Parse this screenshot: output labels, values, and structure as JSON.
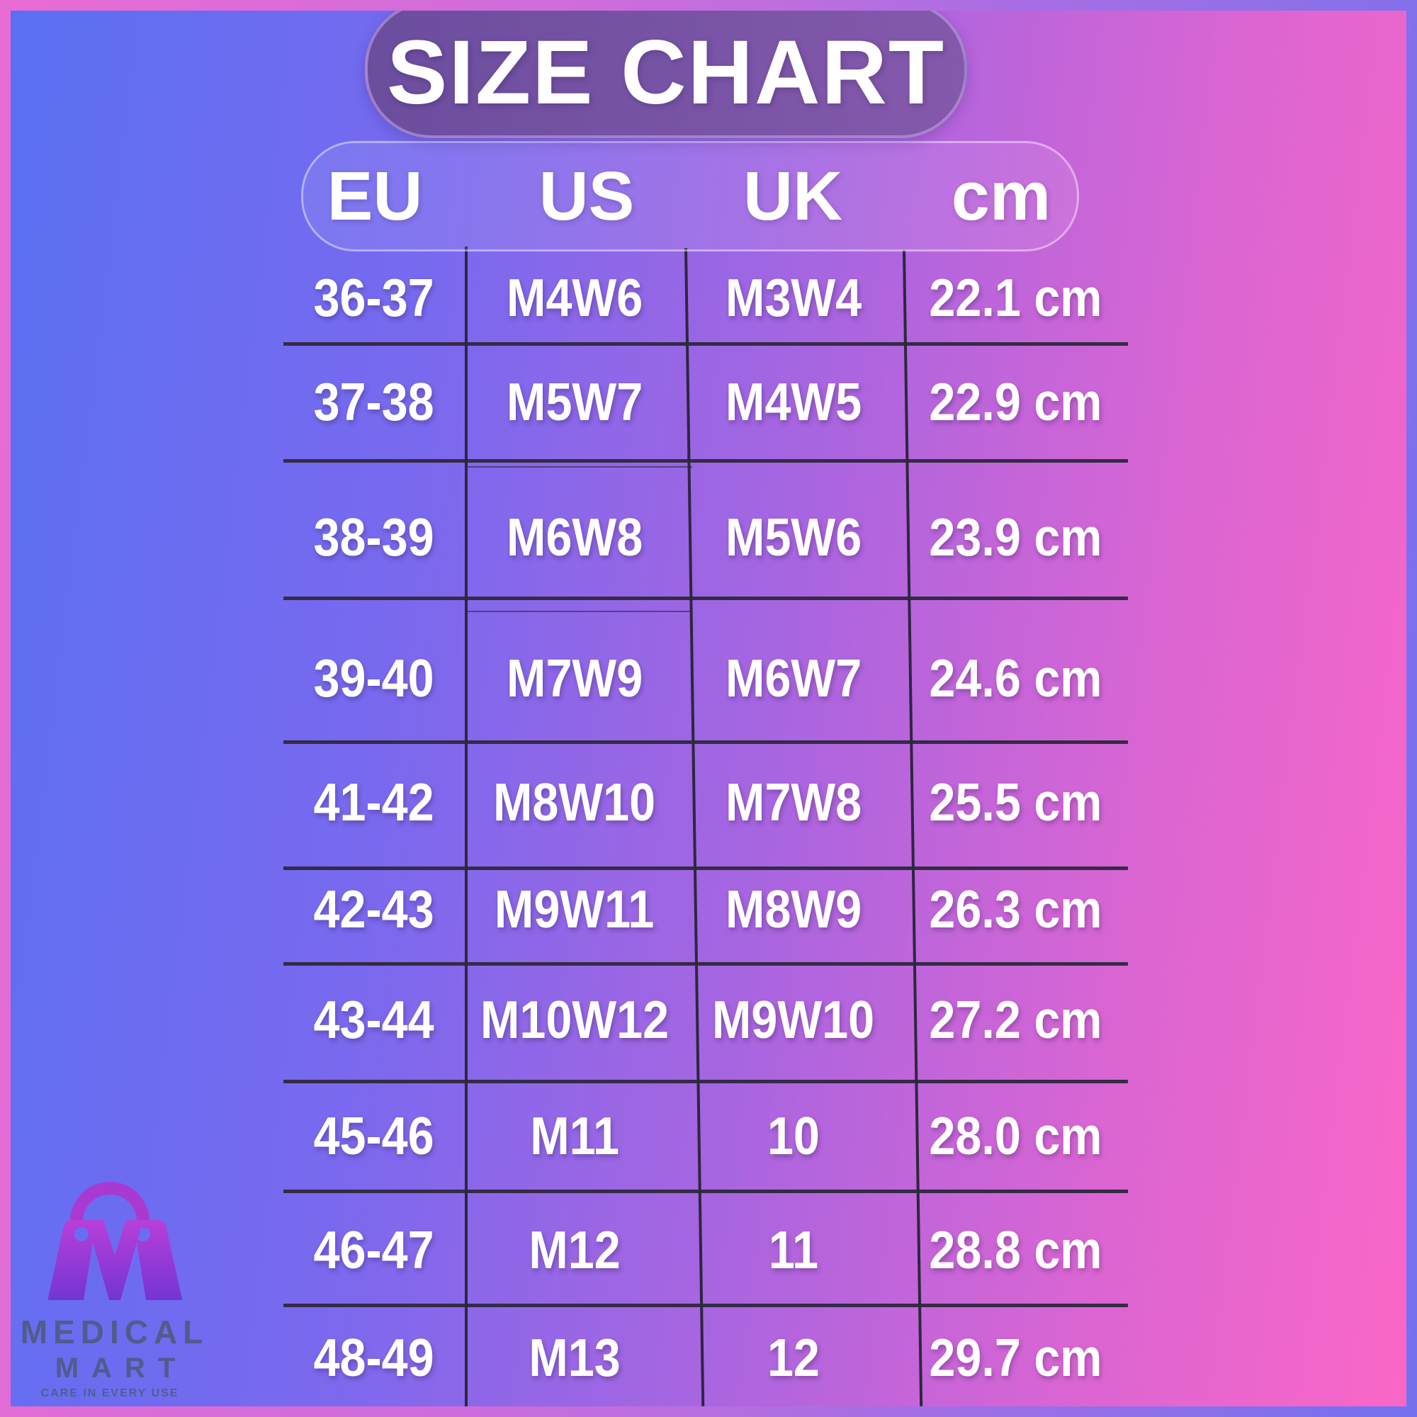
{
  "title": "SIZE CHART",
  "chart_data": {
    "type": "table",
    "title": "SIZE CHART",
    "columns": [
      "EU",
      "US",
      "UK",
      "cm"
    ],
    "rows": [
      [
        "36-37",
        "M4W6",
        "M3W4",
        "22.1 cm"
      ],
      [
        "37-38",
        "M5W7",
        "M4W5",
        "22.9 cm"
      ],
      [
        "38-39",
        "M6W8",
        "M5W6",
        "23.9 cm"
      ],
      [
        "39-40",
        "M7W9",
        "M6W7",
        "24.6 cm"
      ],
      [
        "41-42",
        "M8W10",
        "M7W8",
        "25.5 cm"
      ],
      [
        "42-43",
        "M9W11",
        "M8W9",
        "26.3 cm"
      ],
      [
        "43-44",
        "M10W12",
        "M9W10",
        "27.2 cm"
      ],
      [
        "45-46",
        "M11",
        "10",
        "28.0 cm"
      ],
      [
        "46-47",
        "M12",
        "11",
        "28.8 cm"
      ],
      [
        "48-49",
        "M13",
        "12",
        "29.7 cm"
      ]
    ],
    "layout_hints": {
      "grid": "dark row and column divider lines",
      "header_style": "rounded translucent pill",
      "units_column_suffix": "cm"
    }
  },
  "logo": {
    "line1": "MEDICAL",
    "line2": "MART",
    "tagline": "CARE IN EVERY USE",
    "registered_mark": "®"
  },
  "colors": {
    "background_left": "#5a70f3",
    "background_right": "#fa67c7",
    "frame_left": "#e96cd4",
    "frame_right": "#7471ee",
    "title_pill": "#6b4d9e",
    "divider_line": "#342b45",
    "text": "#ffffff",
    "logo_gradient_top": "#bd40da",
    "logo_gradient_bottom": "#6332d2",
    "logo_handle": "#a83ad2",
    "wordmark": "#4d5a7e"
  }
}
